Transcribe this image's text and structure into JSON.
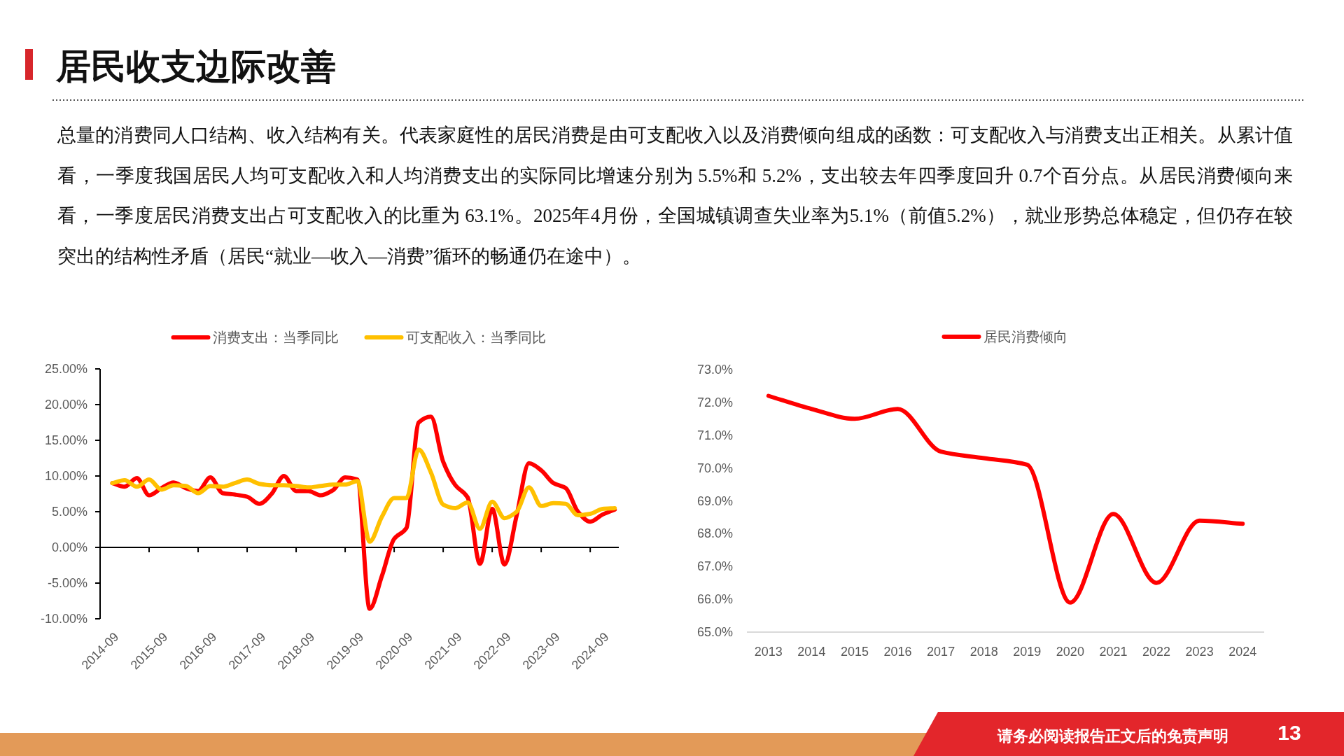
{
  "chart_data": [
    {
      "type": "other",
      "title": "居民收支边际改善",
      "annotations": [
        "总量的消费同人口结构、收入结构有关。代表家庭性的居民消费是由可支配收入以及消费倾向组成的函数：可支配收入与消费支出正相关。从累计值看，一季度我国居民人均可支配收入和人均消费支出的实际同比增速分别为 5.5%和 5.2%，支出较去年四季度回升 0.7个百分点。从居民消费倾向来看，一季度居民消费支出占可支配收入的比重为 63.1%。2025年4月份，全国城镇调查失业率为5.1%（前值5.2%），就业形势总体稳定，但仍存在较突出的结构性矛盾（居民“就业—收入—消费”循环的畅通仍在途中）。",
        "请务必阅读报告正文后的免责声明",
        "13"
      ]
    },
    {
      "type": "line",
      "legend": "top",
      "x": [
        "2014-12",
        "2015-03",
        "2015-06",
        "2015-09",
        "2015-12",
        "2016-03",
        "2016-06",
        "2016-09",
        "2016-12",
        "2017-03",
        "2017-06",
        "2017-09",
        "2017-12",
        "2018-03",
        "2018-06",
        "2018-09",
        "2018-12",
        "2019-03",
        "2019-06",
        "2019-09",
        "2019-12",
        "2020-03",
        "2020-06",
        "2020-09",
        "2020-12",
        "2021-03",
        "2021-06",
        "2021-09",
        "2021-12",
        "2022-03",
        "2022-06",
        "2022-09",
        "2022-12",
        "2023-03",
        "2023-06",
        "2023-09",
        "2023-12",
        "2024-03",
        "2024-06",
        "2024-09",
        "2024-12",
        "2025-03"
      ],
      "series": [
        {
          "name": "消费支出：当季同比",
          "color": "#ff0000",
          "values": [
            9.0,
            8.5,
            9.7,
            7.3,
            8.3,
            9.1,
            8.3,
            7.9,
            9.8,
            7.6,
            7.4,
            7.1,
            6.1,
            7.5,
            10.0,
            7.9,
            7.9,
            7.3,
            8.0,
            9.8,
            9.5,
            -8.6,
            -4.0,
            1.2,
            2.7,
            17.5,
            18.3,
            12.0,
            8.7,
            7.0,
            -2.3,
            5.4,
            -2.4,
            4.5,
            11.8,
            10.8,
            9.0,
            8.3,
            5.0,
            3.6,
            4.6,
            5.3
          ]
        },
        {
          "name": "可支配收入：当季同比",
          "color": "#ffc000",
          "values": [
            9.0,
            9.4,
            8.5,
            9.5,
            8.1,
            8.7,
            8.6,
            7.6,
            8.6,
            8.5,
            9.0,
            9.5,
            8.9,
            8.7,
            8.7,
            8.6,
            8.4,
            8.6,
            8.8,
            8.8,
            9.3,
            0.8,
            4.3,
            6.9,
            6.9,
            13.7,
            10.5,
            6.0,
            5.5,
            6.3,
            2.6,
            6.4,
            4.1,
            5.0,
            8.4,
            5.8,
            6.2,
            6.1,
            4.5,
            4.7,
            5.4,
            5.5
          ]
        }
      ],
      "xlim": [
        "2014-09",
        "2025-04"
      ],
      "xticks": [
        "2014-09",
        "2015-09",
        "2016-09",
        "2017-09",
        "2018-09",
        "2019-09",
        "2020-09",
        "2021-09",
        "2022-09",
        "2023-09",
        "2024-09"
      ],
      "ylim": [
        -10,
        25
      ],
      "yticks": [
        {
          "value": -10,
          "label": "-10.00%"
        },
        {
          "value": -5,
          "label": "-5.00%"
        },
        {
          "value": 0,
          "label": "0.00%"
        },
        {
          "value": 5,
          "label": "5.00%"
        },
        {
          "value": 10,
          "label": "10.00%"
        },
        {
          "value": 15,
          "label": "15.00%"
        },
        {
          "value": 20,
          "label": "20.00%"
        },
        {
          "value": 25,
          "label": "25.00%"
        }
      ]
    },
    {
      "type": "line",
      "legend": "top",
      "categories": [
        "2013",
        "2014",
        "2015",
        "2016",
        "2017",
        "2018",
        "2019",
        "2020",
        "2021",
        "2022",
        "2023",
        "2024"
      ],
      "series": [
        {
          "name": "居民消费倾向",
          "color": "#ff0000",
          "values": [
            72.2,
            71.8,
            71.5,
            71.8,
            70.5,
            70.3,
            70.1,
            65.9,
            68.6,
            66.5,
            68.4,
            68.3
          ]
        }
      ],
      "ylim": [
        65,
        73
      ],
      "yticks": [
        {
          "value": 65,
          "label": "65.0%"
        },
        {
          "value": 66,
          "label": "66.0%"
        },
        {
          "value": 67,
          "label": "67.0%"
        },
        {
          "value": 68,
          "label": "68.0%"
        },
        {
          "value": 69,
          "label": "69.0%"
        },
        {
          "value": 70,
          "label": "70.0%"
        },
        {
          "value": 71,
          "label": "71.0%"
        },
        {
          "value": 72,
          "label": "72.0%"
        },
        {
          "value": 73,
          "label": "73.0%"
        }
      ]
    }
  ]
}
